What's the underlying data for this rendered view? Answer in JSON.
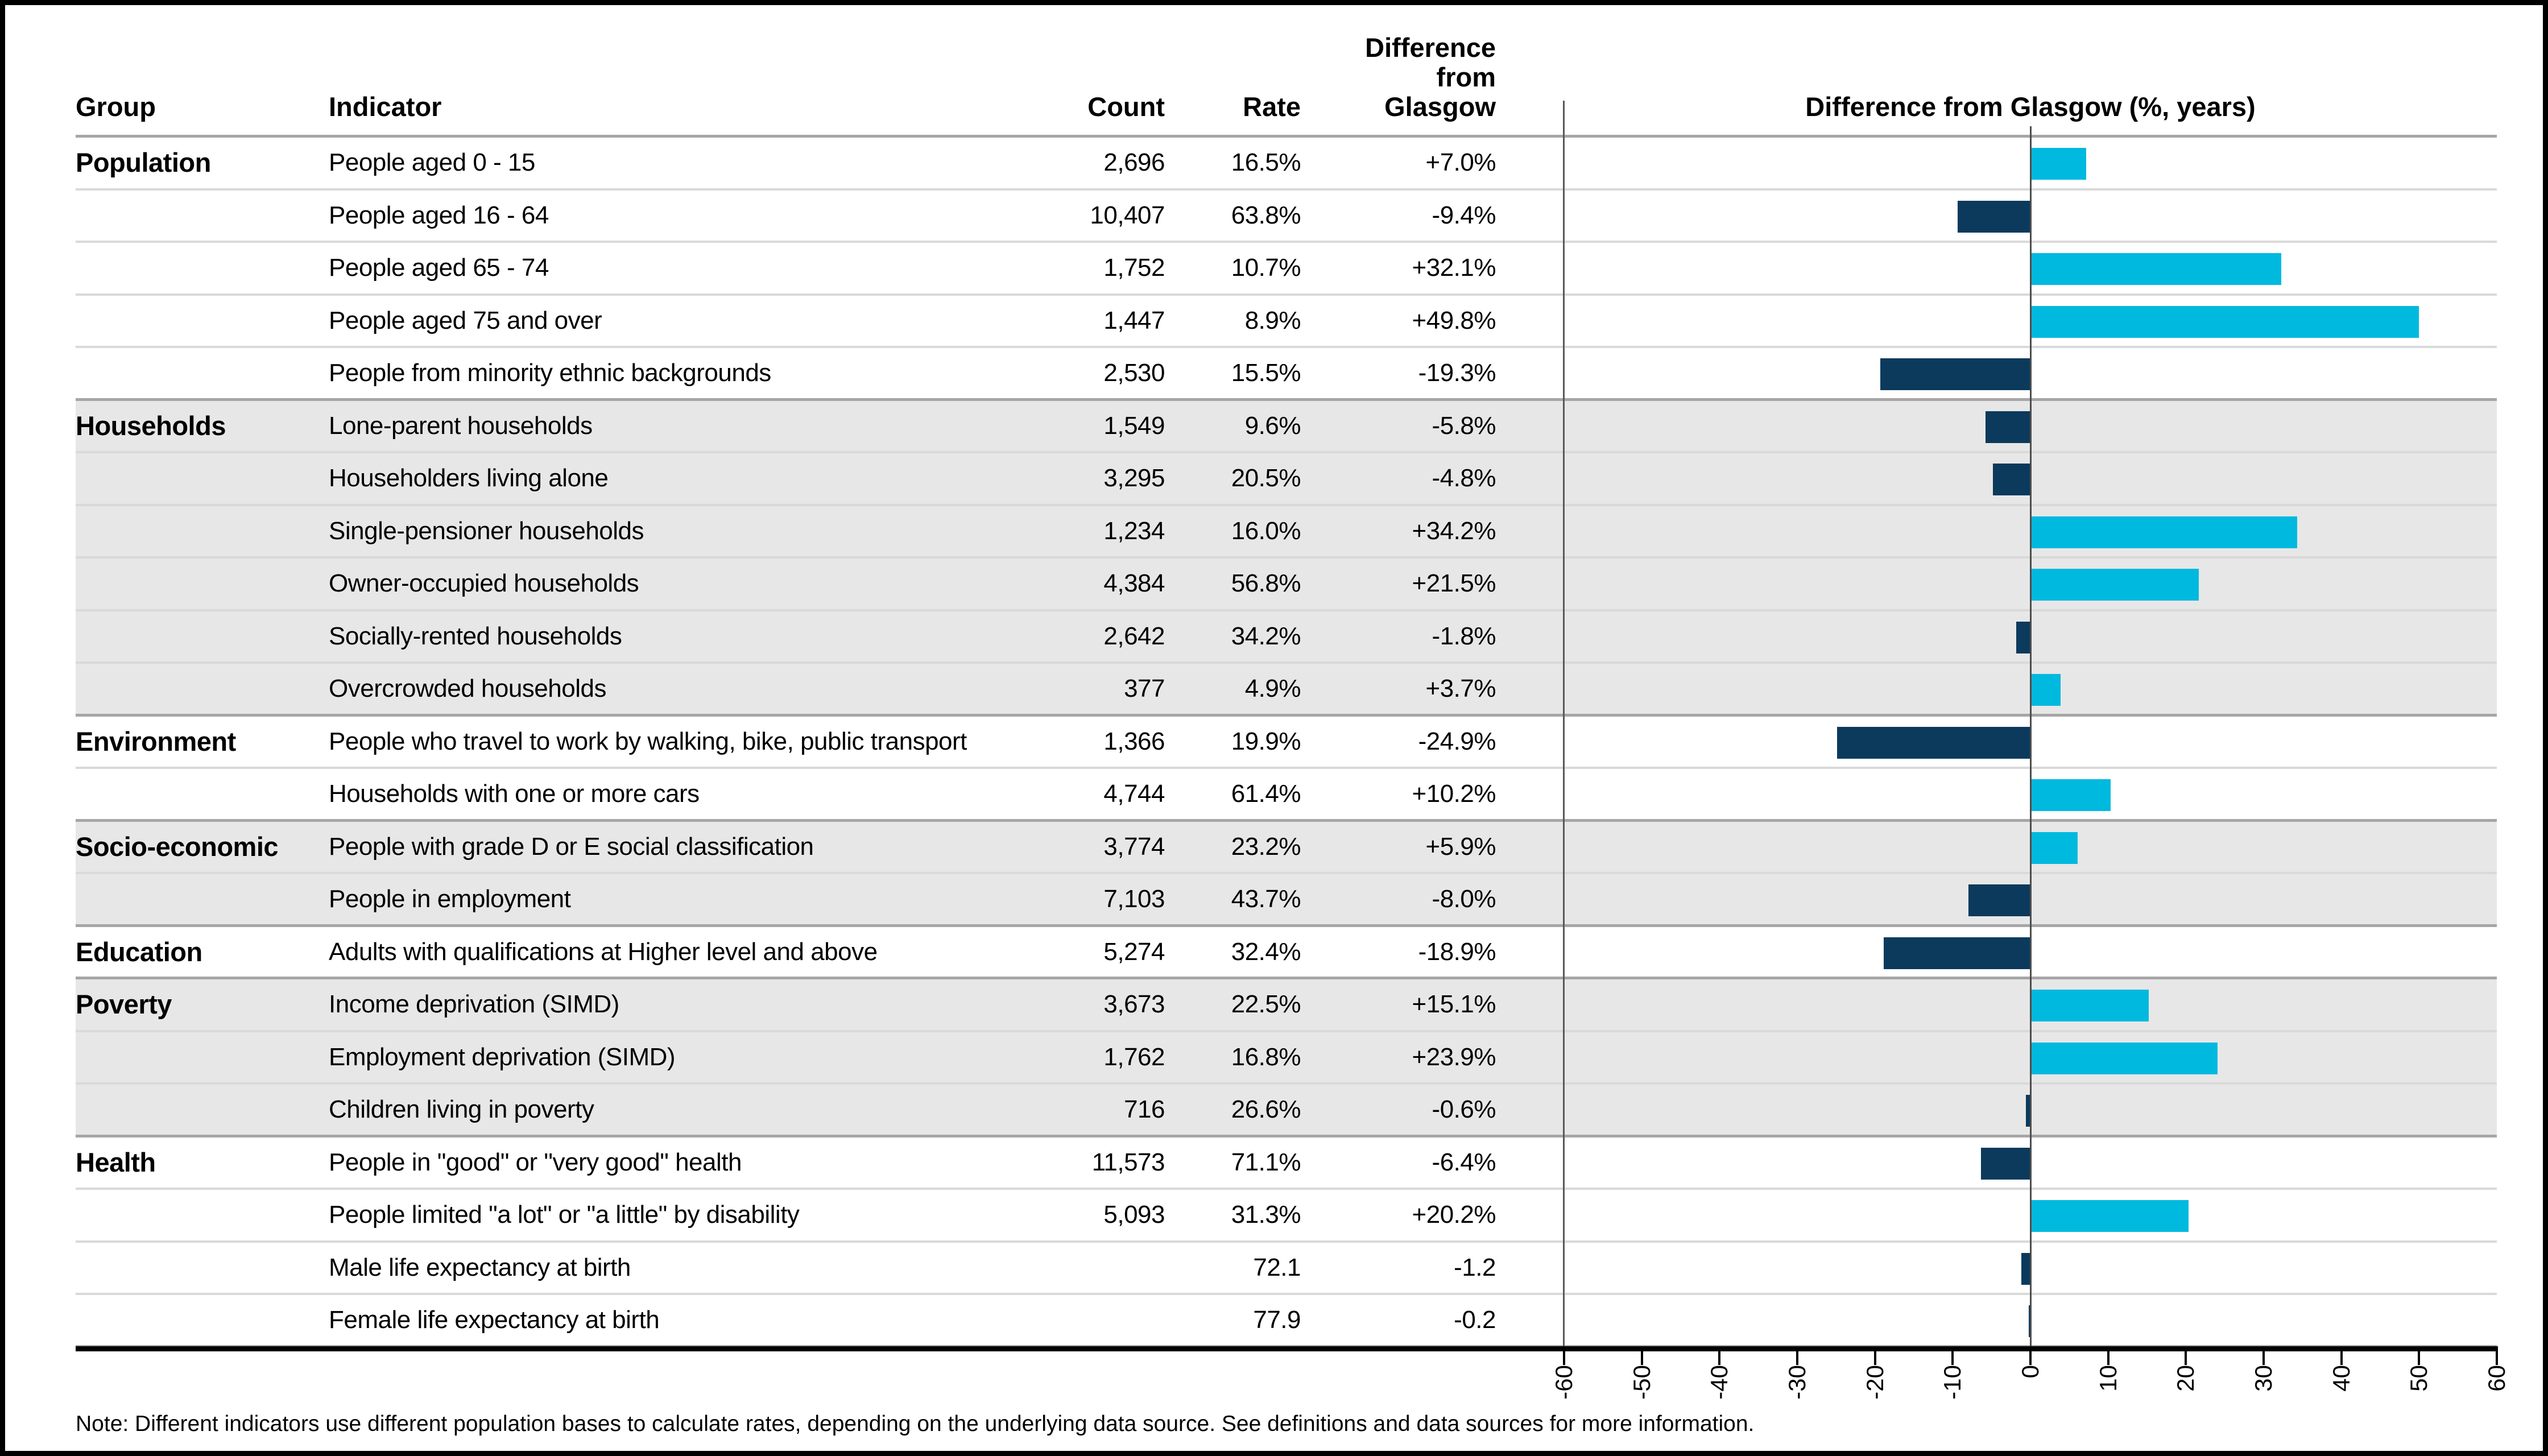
{
  "colors": {
    "positive_bar": "#00b9de",
    "negative_bar": "#0b3a5c",
    "row_shade": "#e7e7e7",
    "separator": "#d9d9d9",
    "group_separator": "#a6a6a6",
    "axis": "#000000"
  },
  "table": {
    "headers": {
      "group": "Group",
      "indicator": "Indicator",
      "count": "Count",
      "rate": "Rate",
      "diff_line1": "Difference",
      "diff_line2": "from",
      "diff_line3": "Glasgow"
    },
    "chart_title": "Difference from Glasgow (%, years)",
    "note": "Note: Different indicators use different population bases to calculate rates, depending on the underlying data source. See definitions and data sources for more information.",
    "groups": [
      {
        "name": "Population",
        "shaded": false,
        "rows": [
          {
            "indicator": "People aged 0 - 15",
            "count": "2,696",
            "rate": "16.5%",
            "diff": "+7.0%",
            "value": 7.0
          },
          {
            "indicator": "People aged 16 - 64",
            "count": "10,407",
            "rate": "63.8%",
            "diff": "-9.4%",
            "value": -9.4
          },
          {
            "indicator": "People aged 65 - 74",
            "count": "1,752",
            "rate": "10.7%",
            "diff": "+32.1%",
            "value": 32.1
          },
          {
            "indicator": "People aged 75 and over",
            "count": "1,447",
            "rate": "8.9%",
            "diff": "+49.8%",
            "value": 49.8
          },
          {
            "indicator": "People from minority ethnic backgrounds",
            "count": "2,530",
            "rate": "15.5%",
            "diff": "-19.3%",
            "value": -19.3
          }
        ]
      },
      {
        "name": "Households",
        "shaded": true,
        "rows": [
          {
            "indicator": "Lone-parent households",
            "count": "1,549",
            "rate": "9.6%",
            "diff": "-5.8%",
            "value": -5.8
          },
          {
            "indicator": "Householders living alone",
            "count": "3,295",
            "rate": "20.5%",
            "diff": "-4.8%",
            "value": -4.8
          },
          {
            "indicator": "Single-pensioner households",
            "count": "1,234",
            "rate": "16.0%",
            "diff": "+34.2%",
            "value": 34.2
          },
          {
            "indicator": "Owner-occupied households",
            "count": "4,384",
            "rate": "56.8%",
            "diff": "+21.5%",
            "value": 21.5
          },
          {
            "indicator": "Socially-rented households",
            "count": "2,642",
            "rate": "34.2%",
            "diff": "-1.8%",
            "value": -1.8
          },
          {
            "indicator": "Overcrowded households",
            "count": "377",
            "rate": "4.9%",
            "diff": "+3.7%",
            "value": 3.7
          }
        ]
      },
      {
        "name": "Environment",
        "shaded": false,
        "rows": [
          {
            "indicator": "People who travel to work by walking, bike, public transport",
            "count": "1,366",
            "rate": "19.9%",
            "diff": "-24.9%",
            "value": -24.9
          },
          {
            "indicator": "Households with one or more cars",
            "count": "4,744",
            "rate": "61.4%",
            "diff": "+10.2%",
            "value": 10.2
          }
        ]
      },
      {
        "name": "Socio-economic",
        "shaded": true,
        "rows": [
          {
            "indicator": "People with grade D or E social classification",
            "count": "3,774",
            "rate": "23.2%",
            "diff": "+5.9%",
            "value": 5.9
          },
          {
            "indicator": "People in employment",
            "count": "7,103",
            "rate": "43.7%",
            "diff": "-8.0%",
            "value": -8.0
          }
        ]
      },
      {
        "name": "Education",
        "shaded": false,
        "rows": [
          {
            "indicator": "Adults with qualifications at Higher level and above",
            "count": "5,274",
            "rate": "32.4%",
            "diff": "-18.9%",
            "value": -18.9
          }
        ]
      },
      {
        "name": "Poverty",
        "shaded": true,
        "rows": [
          {
            "indicator": "Income deprivation (SIMD)",
            "count": "3,673",
            "rate": "22.5%",
            "diff": "+15.1%",
            "value": 15.1
          },
          {
            "indicator": "Employment deprivation (SIMD)",
            "count": "1,762",
            "rate": "16.8%",
            "diff": "+23.9%",
            "value": 23.9
          },
          {
            "indicator": "Children living in poverty",
            "count": "716",
            "rate": "26.6%",
            "diff": "-0.6%",
            "value": -0.6
          }
        ]
      },
      {
        "name": "Health",
        "shaded": false,
        "rows": [
          {
            "indicator": "People in \"good\" or \"very good\" health",
            "count": "11,573",
            "rate": "71.1%",
            "diff": "-6.4%",
            "value": -6.4
          },
          {
            "indicator": "People limited \"a lot\" or \"a little\" by disability",
            "count": "5,093",
            "rate": "31.3%",
            "diff": "+20.2%",
            "value": 20.2
          },
          {
            "indicator": "Male life expectancy at birth",
            "count": "",
            "rate": "72.1",
            "diff": "-1.2",
            "value": -1.2
          },
          {
            "indicator": "Female life expectancy at birth",
            "count": "",
            "rate": "77.9",
            "diff": "-0.2",
            "value": -0.2
          }
        ]
      }
    ]
  },
  "chart": {
    "axis_ticks": [
      "-60",
      "-50",
      "-40",
      "-30",
      "-20",
      "-10",
      "0",
      "10",
      "20",
      "30",
      "40",
      "50",
      "60"
    ],
    "xmin": -60,
    "xmax": 60
  },
  "chart_data": {
    "type": "bar",
    "orientation": "horizontal",
    "title": "Difference from Glasgow (%, years)",
    "categories": [
      "People aged 0 - 15",
      "People aged 16 - 64",
      "People aged 65 - 74",
      "People aged 75 and over",
      "People from minority ethnic backgrounds",
      "Lone-parent households",
      "Householders living alone",
      "Single-pensioner households",
      "Owner-occupied households",
      "Socially-rented households",
      "Overcrowded households",
      "People who travel to work by walking, bike, public transport",
      "Households with one or more cars",
      "People with grade D or E social classification",
      "People in employment",
      "Adults with qualifications at Higher level and above",
      "Income deprivation (SIMD)",
      "Employment deprivation (SIMD)",
      "Children living in poverty",
      "People in \"good\" or \"very good\" health",
      "People limited \"a lot\" or \"a little\" by disability",
      "Male life expectancy at birth",
      "Female life expectancy at birth"
    ],
    "values": [
      7.0,
      -9.4,
      32.1,
      49.8,
      -19.3,
      -5.8,
      -4.8,
      34.2,
      21.5,
      -1.8,
      3.7,
      -24.9,
      10.2,
      5.9,
      -8.0,
      -18.9,
      15.1,
      23.9,
      -0.6,
      -6.4,
      20.2,
      -1.2,
      -0.2
    ],
    "xlabel": "Difference from Glasgow (%, years)",
    "ylabel": "",
    "xlim": [
      -60,
      60
    ],
    "tick_step": 10,
    "grid": false,
    "legend": "none",
    "positive_color": "#00b9de",
    "negative_color": "#0b3a5c"
  }
}
